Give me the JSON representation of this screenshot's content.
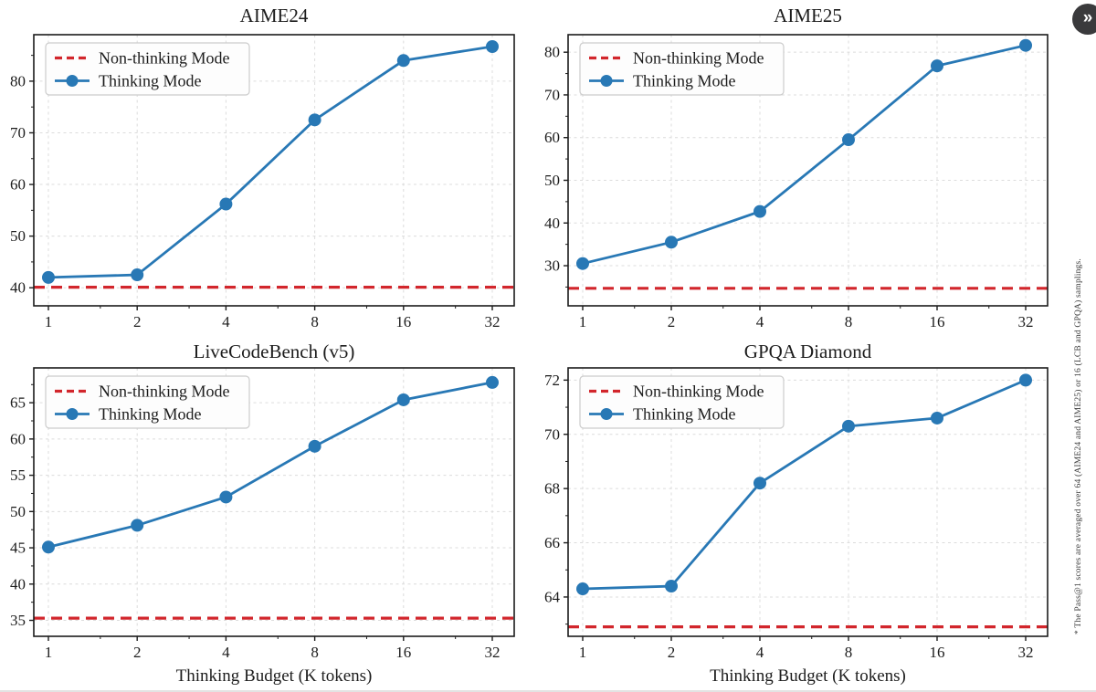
{
  "page": {
    "side_note": "* The Pass@1 scores are averaged over 64 (AIME24 and AIME25) or 16 (LCB and GPQA) samplings.",
    "expand_button_icon": "»"
  },
  "colors": {
    "thinking_line": "#2878b5",
    "non_thinking_line": "#d2262c",
    "grid": "#dcdcdc",
    "axis": "#1c1c1c",
    "text": "#1c1c1c",
    "legend_border": "#cccccc",
    "legend_fill": "#fdfdfd"
  },
  "legend": {
    "non_thinking_label": "Non-thinking Mode",
    "thinking_label": "Thinking Mode"
  },
  "x_axis": {
    "label": "Thinking Budget (K tokens)",
    "ticks": [
      1,
      2,
      4,
      8,
      16,
      32
    ],
    "scale": "log2"
  },
  "chart_data": [
    {
      "type": "line",
      "title": "AIME24",
      "x": [
        1,
        2,
        4,
        8,
        16,
        32
      ],
      "series": [
        {
          "name": "Thinking Mode",
          "style": "solid-markers",
          "values": [
            42.0,
            42.5,
            56.2,
            72.5,
            84.0,
            86.7
          ]
        },
        {
          "name": "Non-thinking Mode",
          "style": "dashed-hline",
          "value": 40.1
        }
      ],
      "xlabel": "",
      "ylabel": "",
      "ylim": [
        36.5,
        89.0
      ],
      "yticks": [
        40,
        50,
        60,
        70,
        80
      ],
      "grid": true,
      "legend_position": "upper left",
      "show_xlabel": false
    },
    {
      "type": "line",
      "title": "AIME25",
      "x": [
        1,
        2,
        4,
        8,
        16,
        32
      ],
      "series": [
        {
          "name": "Thinking Mode",
          "style": "solid-markers",
          "values": [
            30.5,
            35.5,
            42.7,
            59.5,
            76.8,
            81.6
          ]
        },
        {
          "name": "Non-thinking Mode",
          "style": "dashed-hline",
          "value": 24.7
        }
      ],
      "xlabel": "",
      "ylabel": "",
      "ylim": [
        20.6,
        84.1
      ],
      "yticks": [
        30,
        40,
        50,
        60,
        70,
        80
      ],
      "grid": true,
      "legend_position": "upper left",
      "show_xlabel": false
    },
    {
      "type": "line",
      "title": "LiveCodeBench (v5)",
      "x": [
        1,
        2,
        4,
        8,
        16,
        32
      ],
      "series": [
        {
          "name": "Thinking Mode",
          "style": "solid-markers",
          "values": [
            45.1,
            48.1,
            52.0,
            59.0,
            65.4,
            67.8
          ]
        },
        {
          "name": "Non-thinking Mode",
          "style": "dashed-hline",
          "value": 35.3
        }
      ],
      "xlabel": "Thinking Budget (K tokens)",
      "ylabel": "",
      "ylim": [
        32.8,
        69.8
      ],
      "yticks": [
        35,
        40,
        45,
        50,
        55,
        60,
        65
      ],
      "grid": true,
      "legend_position": "upper left",
      "show_xlabel": true
    },
    {
      "type": "line",
      "title": "GPQA Diamond",
      "x": [
        1,
        2,
        4,
        8,
        16,
        32
      ],
      "series": [
        {
          "name": "Thinking Mode",
          "style": "solid-markers",
          "values": [
            64.3,
            64.4,
            68.2,
            70.3,
            70.6,
            72.0
          ]
        },
        {
          "name": "Non-thinking Mode",
          "style": "dashed-hline",
          "value": 62.9
        }
      ],
      "xlabel": "Thinking Budget (K tokens)",
      "ylabel": "",
      "ylim": [
        62.55,
        72.45
      ],
      "yticks": [
        64,
        66,
        68,
        70,
        72
      ],
      "grid": true,
      "legend_position": "upper left",
      "show_xlabel": true
    }
  ]
}
